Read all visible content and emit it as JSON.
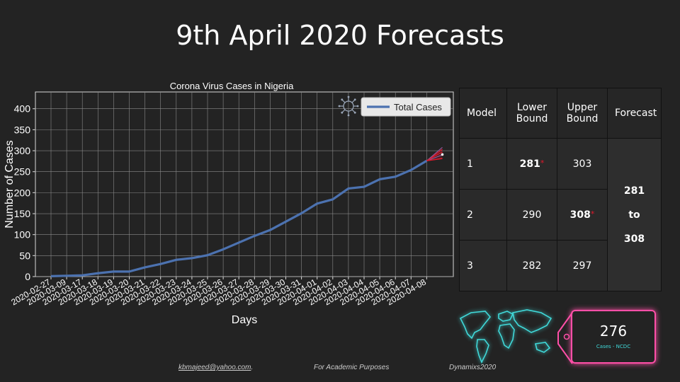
{
  "slide": {
    "title": "9th April 2020 Forecasts"
  },
  "chart_data": {
    "type": "line",
    "title": "Corona Virus Cases in Nigeria",
    "xlabel": "Days",
    "ylabel": "Number of Cases",
    "ylim": [
      0,
      440
    ],
    "yticks": [
      0,
      50,
      100,
      150,
      200,
      250,
      300,
      350,
      400
    ],
    "grid": true,
    "legend_position": "top-right",
    "categories": [
      "2020-02-27",
      "2020-03-09",
      "2020-03-17",
      "2020-03-18",
      "2020-03-19",
      "2020-03-20",
      "2020-03-21",
      "2020-03-22",
      "2020-03-23",
      "2020-03-24",
      "2020-03-25",
      "2020-03-26",
      "2020-03-27",
      "2020-03-28",
      "2020-03-29",
      "2020-03-30",
      "2020-03-31",
      "2020-04-01",
      "2020-04-02",
      "2020-04-03",
      "2020-04-04",
      "2020-04-05",
      "2020-04-06",
      "2020-04-07",
      "2020-04-08"
    ],
    "series": [
      {
        "name": "Total Cases",
        "color": "#4c72b0",
        "values": [
          1,
          2,
          3,
          8,
          12,
          12,
          22,
          30,
          40,
          44,
          51,
          65,
          81,
          97,
          111,
          131,
          151,
          174,
          184,
          210,
          214,
          232,
          238,
          254,
          276
        ]
      }
    ],
    "forecast_fan": {
      "colors": [
        "#e0182b",
        "#8b5a9b"
      ]
    }
  },
  "table": {
    "headers": [
      "Model",
      "Lower Bound",
      "Upper Bound",
      "Forecast"
    ],
    "rows": [
      {
        "model": "1",
        "lower": "281",
        "upper": "303"
      },
      {
        "model": "2",
        "lower": "290",
        "upper": "308"
      },
      {
        "model": "3",
        "lower": "282",
        "upper": "297"
      }
    ],
    "forecast": {
      "from": "281",
      "to_word": "to",
      "to": "308"
    },
    "star": "*"
  },
  "badge": {
    "value": "276",
    "label": "Cases - NCDC"
  },
  "footer": {
    "email": "kbmajeed@yahoo.com",
    "email_suffix": ".",
    "purpose": "For Academic Purposes",
    "brand": "Dynamixs2020"
  },
  "colors": {
    "accent_pink": "#ff4fa8",
    "accent_cyan": "#40d9d9",
    "star_red": "#e0182b"
  },
  "icons": {
    "legend_icon": "virus-icon",
    "map_icon": "world-map-icon"
  }
}
